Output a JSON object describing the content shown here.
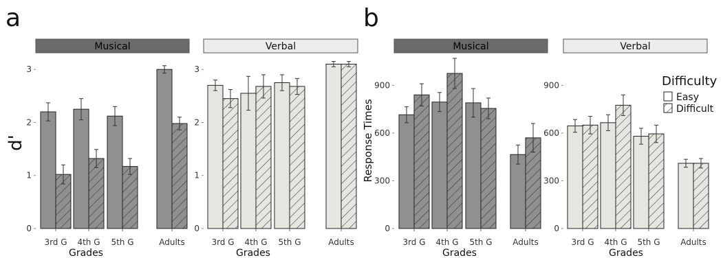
{
  "figure": {
    "panel_letters": [
      "a",
      "b"
    ],
    "x_title": "Grades",
    "legend": {
      "title": "Difficulty",
      "items": [
        "Easy",
        "Difficult"
      ]
    },
    "colors": {
      "musical": "#909090",
      "verbal": "#e6e6e0",
      "strip_musical": "#6a6a6a",
      "strip_verbal": "#ececea",
      "edge": "#222222"
    }
  },
  "chart_data": [
    {
      "type": "bar",
      "panel": "a",
      "facet": "Musical",
      "categories": [
        "3rd G",
        "4th G",
        "5th G",
        "Adults"
      ],
      "series": [
        {
          "name": "Easy",
          "values": [
            2.2,
            2.25,
            2.12,
            3.0
          ],
          "err": [
            0.17,
            0.2,
            0.18,
            0.07
          ]
        },
        {
          "name": "Difficult",
          "values": [
            1.02,
            1.32,
            1.17,
            1.98
          ],
          "err": [
            0.18,
            0.17,
            0.15,
            0.12
          ]
        }
      ],
      "ylabel": "d'",
      "xlabel": "Grades",
      "ylim": [
        0,
        3.3
      ],
      "yticks": [
        0,
        1,
        2,
        3
      ]
    },
    {
      "type": "bar",
      "panel": "a",
      "facet": "Verbal",
      "categories": [
        "3rd G",
        "4th G",
        "5th G",
        "Adults"
      ],
      "series": [
        {
          "name": "Easy",
          "values": [
            2.7,
            2.55,
            2.75,
            3.1
          ],
          "err": [
            0.1,
            0.32,
            0.15,
            0.05
          ]
        },
        {
          "name": "Difficult",
          "values": [
            2.45,
            2.68,
            2.68,
            3.1
          ],
          "err": [
            0.17,
            0.22,
            0.15,
            0.05
          ]
        }
      ],
      "ylabel": "",
      "xlabel": "Grades",
      "ylim": [
        0,
        3.3
      ],
      "yticks": [
        0,
        1,
        2,
        3
      ]
    },
    {
      "type": "bar",
      "panel": "b",
      "facet": "Musical",
      "categories": [
        "3rd G",
        "4th G",
        "5th G",
        "Adults"
      ],
      "series": [
        {
          "name": "Easy",
          "values": [
            715,
            795,
            790,
            465
          ],
          "err": [
            50,
            60,
            90,
            60
          ]
        },
        {
          "name": "Difficult",
          "values": [
            840,
            975,
            755,
            570
          ],
          "err": [
            70,
            95,
            65,
            90
          ]
        }
      ],
      "ylabel": "Response Times",
      "xlabel": "Grades",
      "ylim": [
        0,
        1100
      ],
      "yticks": [
        0,
        300,
        600,
        900
      ]
    },
    {
      "type": "bar",
      "panel": "b",
      "facet": "Verbal",
      "categories": [
        "3rd G",
        "4th G",
        "5th G",
        "Adults"
      ],
      "series": [
        {
          "name": "Easy",
          "values": [
            645,
            665,
            580,
            410
          ],
          "err": [
            40,
            50,
            50,
            25
          ]
        },
        {
          "name": "Difficult",
          "values": [
            650,
            775,
            595,
            410
          ],
          "err": [
            55,
            65,
            55,
            30
          ]
        }
      ],
      "ylabel": "",
      "xlabel": "Grades",
      "ylim": [
        0,
        1100
      ],
      "yticks": [
        0,
        300,
        600,
        900
      ]
    }
  ]
}
